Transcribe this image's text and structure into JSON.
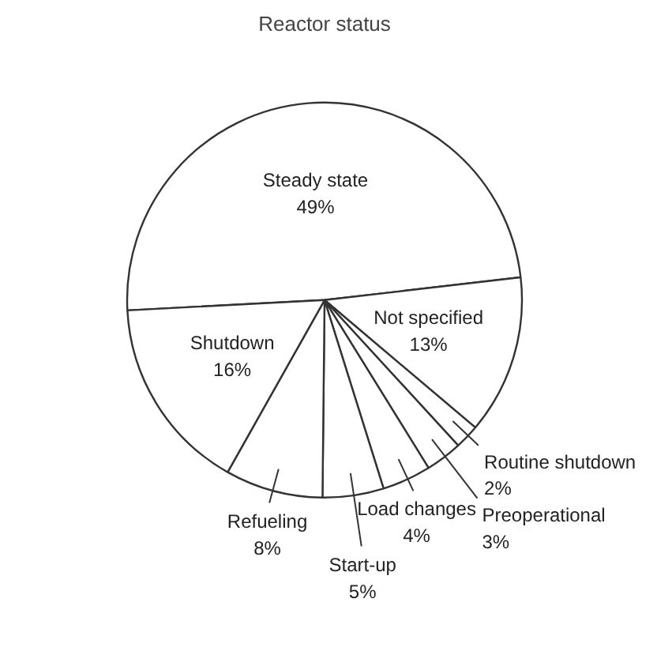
{
  "chart_data": {
    "type": "pie",
    "title": "Reactor status",
    "categories": [
      "Steady state",
      "Not specified",
      "Routine shutdown",
      "Preoperational",
      "Load changes",
      "Start-up",
      "Refueling",
      "Shutdown"
    ],
    "values": [
      49,
      13,
      2,
      3,
      4,
      5,
      8,
      16
    ],
    "colors": [
      "#ffffff",
      "#ffffff",
      "#ffffff",
      "#ffffff",
      "#ffffff",
      "#ffffff",
      "#ffffff",
      "#ffffff"
    ],
    "value_labels": [
      "49%",
      "13%",
      "2%",
      "3%",
      "4%",
      "5%",
      "8%",
      "16%"
    ]
  }
}
